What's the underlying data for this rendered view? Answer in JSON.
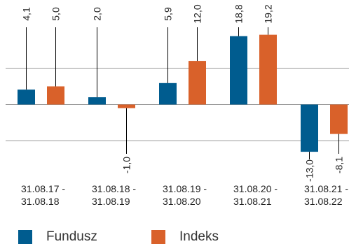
{
  "chart_data": {
    "type": "bar",
    "categories": [
      "31.08.17 - 31.08.18",
      "31.08.18 - 31.08.19",
      "31.08.19 - 31.08.20",
      "31.08.20 - 31.08.21",
      "31.08.21 - 31.08.22"
    ],
    "category_lines": [
      [
        "31.08.17 -",
        "31.08.18"
      ],
      [
        "31.08.18 -",
        "31.08.19"
      ],
      [
        "31.08.19 -",
        "31.08.20"
      ],
      [
        "31.08.20 -",
        "31.08.21"
      ],
      [
        "31.08.21 -",
        "31.08.22"
      ]
    ],
    "series": [
      {
        "name": "Fundusz",
        "color": "#005C8F",
        "values": [
          4.1,
          2.0,
          5.9,
          18.8,
          -13.0
        ],
        "labels": [
          "4,1",
          "2,0",
          "5,9",
          "18,8",
          "-13,0"
        ]
      },
      {
        "name": "Indeks",
        "color": "#D9612A",
        "values": [
          5.0,
          -1.0,
          12.0,
          19.2,
          -8.1
        ],
        "labels": [
          "5,0",
          "-1,0",
          "12,0",
          "19,2",
          "-8,1"
        ]
      }
    ],
    "ylim": [
      -13,
      19.2
    ],
    "gridlines": [
      -10,
      0,
      10
    ],
    "legend_position": "bottom-left"
  }
}
